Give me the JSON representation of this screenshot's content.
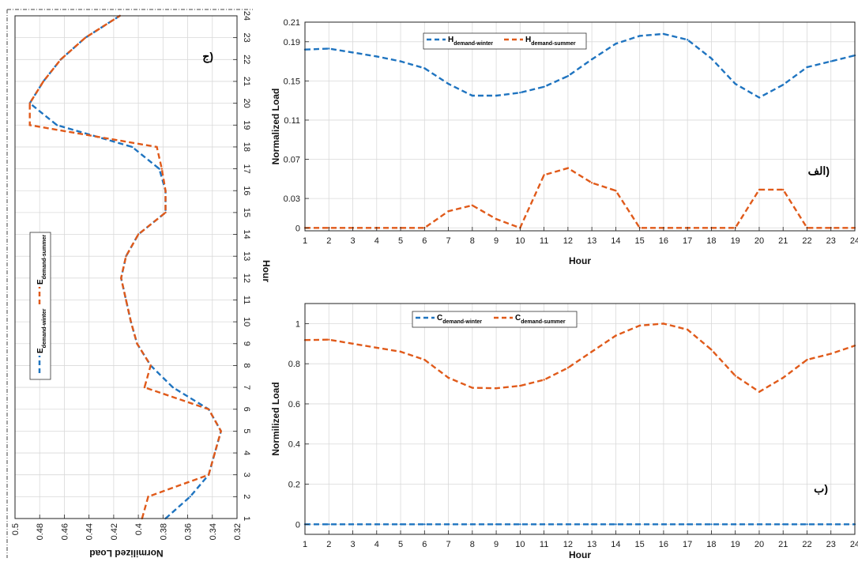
{
  "colors": {
    "winter": "#1f74c0",
    "summer": "#e05a1a",
    "grid": "#d9d9d9",
    "axis": "#222222"
  },
  "chart_data": [
    {
      "id": "panel_h",
      "type": "line",
      "panel_label": "الف)",
      "xlabel": "Hour",
      "ylabel": "Normalized Load",
      "xlim": [
        1,
        24
      ],
      "ylim": [
        -0.003,
        0.21
      ],
      "xticks": [
        1,
        2,
        3,
        4,
        5,
        6,
        7,
        8,
        9,
        10,
        11,
        12,
        13,
        14,
        15,
        16,
        17,
        18,
        19,
        20,
        21,
        22,
        23,
        24
      ],
      "yticks": [
        0,
        0.03,
        0.07,
        0.11,
        0.15,
        0.19,
        0.21
      ],
      "ytick_labels": [
        "0",
        "0.03",
        "0.07",
        "0.11",
        "0.15",
        "0.19",
        "0.21"
      ],
      "grid": true,
      "legend_position": "top-left",
      "x": [
        1,
        2,
        3,
        4,
        5,
        6,
        7,
        8,
        9,
        10,
        11,
        12,
        13,
        14,
        15,
        16,
        17,
        18,
        19,
        20,
        21,
        22,
        23,
        24
      ],
      "series": [
        {
          "key": "winter",
          "name": "H",
          "name_sub": "demand-winter",
          "values": [
            0.182,
            0.183,
            0.179,
            0.175,
            0.17,
            0.163,
            0.147,
            0.135,
            0.135,
            0.138,
            0.144,
            0.155,
            0.172,
            0.188,
            0.196,
            0.198,
            0.192,
            0.173,
            0.147,
            0.133,
            0.146,
            0.164,
            0.17,
            0.176
          ]
        },
        {
          "key": "summer",
          "name": "H",
          "name_sub": "demand-summer",
          "values": [
            0,
            0,
            0,
            0,
            0,
            0,
            0.017,
            0.023,
            0.009,
            0,
            0.054,
            0.061,
            0.046,
            0.038,
            0,
            0,
            0,
            0,
            0,
            0.039,
            0.039,
            0,
            0,
            0
          ]
        }
      ]
    },
    {
      "id": "panel_c",
      "type": "line",
      "panel_label": "ب)",
      "xlabel": "Hour",
      "ylabel": "Normilized Load",
      "xlim": [
        1,
        24
      ],
      "ylim": [
        -0.05,
        1.1
      ],
      "xticks": [
        1,
        2,
        3,
        4,
        5,
        6,
        7,
        8,
        9,
        10,
        11,
        12,
        13,
        14,
        15,
        16,
        17,
        18,
        19,
        20,
        21,
        22,
        23,
        24
      ],
      "yticks": [
        0,
        0.2,
        0.4,
        0.6,
        0.8,
        1
      ],
      "ytick_labels": [
        "0",
        "0.2",
        "0.4",
        "0.6",
        "0.8",
        "1"
      ],
      "grid": true,
      "legend_position": "top-left",
      "x": [
        1,
        2,
        3,
        4,
        5,
        6,
        7,
        8,
        9,
        10,
        11,
        12,
        13,
        14,
        15,
        16,
        17,
        18,
        19,
        20,
        21,
        22,
        23,
        24
      ],
      "series": [
        {
          "key": "winter",
          "name": "C",
          "name_sub": "demand-winter",
          "values": [
            0,
            0,
            0,
            0,
            0,
            0,
            0,
            0,
            0,
            0,
            0,
            0,
            0,
            0,
            0,
            0,
            0,
            0,
            0,
            0,
            0,
            0,
            0,
            0
          ]
        },
        {
          "key": "summer",
          "name": "C",
          "name_sub": "demand-summer",
          "values": [
            0.918,
            0.92,
            0.9,
            0.88,
            0.86,
            0.82,
            0.73,
            0.68,
            0.678,
            0.69,
            0.72,
            0.78,
            0.86,
            0.94,
            0.99,
            1.0,
            0.97,
            0.87,
            0.74,
            0.66,
            0.73,
            0.82,
            0.85,
            0.89
          ]
        }
      ]
    },
    {
      "id": "panel_e",
      "type": "line",
      "orientation": "rotated",
      "panel_label": "ج)",
      "xlabel": "Hour",
      "ylabel": "Normilized Load",
      "xlim": [
        1,
        24
      ],
      "ylim": [
        0.32,
        0.5
      ],
      "xticks": [
        1,
        2,
        3,
        4,
        5,
        6,
        7,
        8,
        9,
        10,
        11,
        12,
        13,
        14,
        15,
        16,
        17,
        18,
        19,
        20,
        21,
        22,
        23,
        24
      ],
      "yticks": [
        0.32,
        0.34,
        0.36,
        0.38,
        0.4,
        0.42,
        0.44,
        0.46,
        0.48,
        0.5
      ],
      "ytick_labels": [
        "0.32",
        "0.34",
        "0.36",
        "0.38",
        "0.4",
        "0.42",
        "0.44",
        "0.46",
        "0.48",
        "0.5"
      ],
      "grid": true,
      "legend_position": "left",
      "x": [
        1,
        2,
        3,
        4,
        5,
        6,
        7,
        8,
        9,
        10,
        11,
        12,
        13,
        14,
        15,
        16,
        17,
        18,
        19,
        20,
        21,
        22,
        23,
        24
      ],
      "series": [
        {
          "key": "winter",
          "name": "E",
          "name_sub": "demand-winter",
          "values": [
            0.378,
            0.358,
            0.343,
            0.338,
            0.333,
            0.343,
            0.372,
            0.39,
            0.401,
            0.406,
            0.41,
            0.414,
            0.41,
            0.4,
            0.378,
            0.378,
            0.383,
            0.405,
            0.466,
            0.488,
            0.477,
            0.463,
            0.443,
            0.415
          ]
        },
        {
          "key": "summer",
          "name": "E",
          "name_sub": "demand-summer",
          "values": [
            0.397,
            0.392,
            0.343,
            0.338,
            0.333,
            0.343,
            0.395,
            0.39,
            0.401,
            0.406,
            0.41,
            0.414,
            0.41,
            0.4,
            0.378,
            0.378,
            0.381,
            0.385,
            0.488,
            0.488,
            0.477,
            0.463,
            0.443,
            0.415
          ]
        }
      ]
    }
  ]
}
